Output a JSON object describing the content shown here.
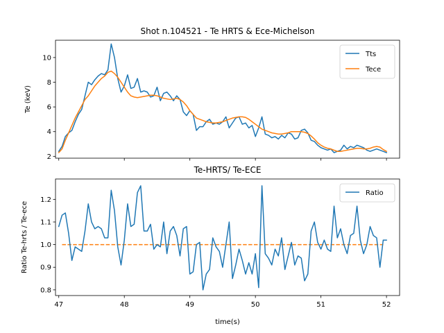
{
  "chart_data": [
    {
      "type": "line",
      "title": "Shot n.104521 - Te HRTS & Ece-Michelson",
      "xlabel": "",
      "ylabel": "Te (keV)",
      "xlim": [
        46.95,
        52.2
      ],
      "ylim": [
        1.85,
        11.4
      ],
      "xticks": [
        47,
        48,
        49,
        50,
        51,
        52
      ],
      "yticks": [
        2,
        4,
        6,
        8,
        10
      ],
      "legend": "top-right",
      "series": [
        {
          "name": "Tts",
          "color": "#1f77b4",
          "x": [
            47.0,
            47.05,
            47.1,
            47.15,
            47.2,
            47.25,
            47.3,
            47.35,
            47.4,
            47.45,
            47.5,
            47.55,
            47.6,
            47.65,
            47.7,
            47.75,
            47.8,
            47.85,
            47.9,
            47.95,
            48.0,
            48.05,
            48.1,
            48.15,
            48.2,
            48.25,
            48.3,
            48.35,
            48.4,
            48.45,
            48.5,
            48.55,
            48.6,
            48.65,
            48.7,
            48.75,
            48.8,
            48.85,
            48.9,
            48.95,
            49.0,
            49.05,
            49.1,
            49.15,
            49.2,
            49.25,
            49.3,
            49.35,
            49.4,
            49.45,
            49.5,
            49.55,
            49.6,
            49.65,
            49.7,
            49.75,
            49.8,
            49.85,
            49.9,
            49.95,
            50.0,
            50.05,
            50.1,
            50.15,
            50.2,
            50.25,
            50.3,
            50.35,
            50.4,
            50.45,
            50.5,
            50.55,
            50.6,
            50.65,
            50.7,
            50.75,
            50.8,
            50.85,
            50.9,
            50.95,
            51.0,
            51.05,
            51.1,
            51.15,
            51.2,
            51.25,
            51.3,
            51.35,
            51.4,
            51.45,
            51.5,
            51.55,
            51.6,
            51.65,
            51.7,
            51.75,
            51.8,
            51.85,
            51.9,
            51.95,
            52.0
          ],
          "values": [
            2.4,
            2.8,
            3.6,
            3.9,
            4.1,
            4.8,
            5.4,
            5.8,
            6.9,
            8.0,
            7.8,
            8.2,
            8.5,
            8.7,
            8.6,
            9.0,
            11.1,
            10.0,
            8.3,
            7.2,
            7.7,
            8.6,
            7.5,
            7.6,
            8.3,
            7.2,
            7.3,
            7.2,
            6.8,
            6.9,
            7.6,
            6.5,
            7.1,
            7.2,
            6.9,
            6.5,
            6.9,
            6.6,
            5.6,
            5.3,
            5.7,
            5.4,
            4.1,
            4.4,
            4.4,
            4.8,
            5.0,
            4.6,
            4.7,
            4.6,
            4.8,
            5.2,
            4.3,
            4.7,
            5.1,
            5.2,
            4.6,
            4.7,
            4.3,
            4.5,
            3.6,
            4.3,
            5.2,
            3.8,
            3.7,
            3.5,
            3.6,
            3.4,
            3.7,
            3.5,
            3.9,
            3.8,
            3.4,
            3.5,
            4.1,
            4.2,
            3.9,
            3.3,
            3.2,
            2.9,
            2.7,
            2.6,
            2.5,
            2.6,
            2.3,
            2.4,
            2.5,
            2.9,
            2.6,
            2.8,
            2.7,
            2.9,
            2.8,
            2.7,
            2.5,
            2.4,
            2.5,
            2.6,
            2.5,
            2.4,
            2.3
          ]
        },
        {
          "name": "Tece",
          "color": "#ff7f0e",
          "x": [
            47.0,
            47.05,
            47.1,
            47.15,
            47.2,
            47.25,
            47.3,
            47.35,
            47.4,
            47.45,
            47.5,
            47.55,
            47.6,
            47.65,
            47.7,
            47.75,
            47.8,
            47.85,
            47.9,
            47.95,
            48.0,
            48.05,
            48.1,
            48.15,
            48.2,
            48.25,
            48.3,
            48.35,
            48.4,
            48.45,
            48.5,
            48.55,
            48.6,
            48.65,
            48.7,
            48.75,
            48.8,
            48.85,
            48.9,
            48.95,
            49.0,
            49.05,
            49.1,
            49.15,
            49.2,
            49.25,
            49.3,
            49.35,
            49.4,
            49.45,
            49.5,
            49.55,
            49.6,
            49.65,
            49.7,
            49.75,
            49.8,
            49.85,
            49.9,
            49.95,
            50.0,
            50.05,
            50.1,
            50.15,
            50.2,
            50.25,
            50.3,
            50.35,
            50.4,
            50.45,
            50.5,
            50.55,
            50.6,
            50.65,
            50.7,
            50.75,
            50.8,
            50.85,
            50.9,
            50.95,
            51.0,
            51.05,
            51.1,
            51.15,
            51.2,
            51.25,
            51.3,
            51.35,
            51.4,
            51.45,
            51.5,
            51.55,
            51.6,
            51.65,
            51.7,
            51.75,
            51.8,
            51.85,
            51.9,
            51.95,
            52.0
          ],
          "values": [
            2.3,
            2.6,
            3.3,
            3.9,
            4.5,
            5.1,
            5.6,
            6.1,
            6.6,
            6.9,
            7.3,
            7.7,
            8.0,
            8.3,
            8.5,
            8.8,
            8.9,
            8.7,
            8.4,
            8.0,
            7.6,
            7.2,
            6.9,
            6.8,
            6.75,
            6.8,
            6.85,
            6.9,
            6.95,
            6.95,
            6.9,
            6.8,
            6.7,
            6.65,
            6.6,
            6.65,
            6.7,
            6.6,
            6.4,
            6.1,
            5.7,
            5.4,
            5.1,
            5.0,
            4.9,
            4.8,
            4.75,
            4.7,
            4.7,
            4.75,
            4.8,
            4.9,
            5.0,
            5.1,
            5.15,
            5.2,
            5.2,
            5.15,
            5.0,
            4.8,
            4.6,
            4.4,
            4.2,
            4.1,
            4.0,
            3.9,
            3.85,
            3.8,
            3.8,
            3.85,
            3.9,
            4.0,
            4.0,
            4.0,
            4.0,
            3.95,
            3.85,
            3.65,
            3.4,
            3.1,
            2.9,
            2.75,
            2.65,
            2.6,
            2.5,
            2.4,
            2.4,
            2.45,
            2.5,
            2.55,
            2.6,
            2.65,
            2.65,
            2.6,
            2.6,
            2.65,
            2.75,
            2.8,
            2.75,
            2.55,
            2.4
          ]
        }
      ]
    },
    {
      "type": "line",
      "title": "Te-HRTS/ Te-ECE",
      "xlabel": "time(s)",
      "ylabel": "Ratio Te-hrts / Te-ece",
      "xlim": [
        46.95,
        52.2
      ],
      "ylim": [
        0.775,
        1.29
      ],
      "xticks": [
        47,
        48,
        49,
        50,
        51,
        52
      ],
      "yticks": [
        0.8,
        0.9,
        1.0,
        1.1,
        1.2
      ],
      "legend": "top-right",
      "reference_line": {
        "y": 1.0,
        "color": "#ff7f0e",
        "style": "dashed",
        "x": [
          47.05,
          51.95
        ]
      },
      "series": [
        {
          "name": "Ratio",
          "color": "#1f77b4",
          "x": [
            47.0,
            47.05,
            47.1,
            47.15,
            47.2,
            47.25,
            47.3,
            47.35,
            47.4,
            47.45,
            47.5,
            47.55,
            47.6,
            47.65,
            47.7,
            47.75,
            47.8,
            47.85,
            47.9,
            47.95,
            48.0,
            48.05,
            48.1,
            48.15,
            48.2,
            48.25,
            48.3,
            48.35,
            48.4,
            48.45,
            48.5,
            48.55,
            48.6,
            48.65,
            48.7,
            48.75,
            48.8,
            48.85,
            48.9,
            48.95,
            49.0,
            49.05,
            49.1,
            49.15,
            49.2,
            49.25,
            49.3,
            49.35,
            49.4,
            49.45,
            49.5,
            49.55,
            49.6,
            49.65,
            49.7,
            49.75,
            49.8,
            49.85,
            49.9,
            49.95,
            50.0,
            50.05,
            50.1,
            50.15,
            50.2,
            50.25,
            50.3,
            50.35,
            50.4,
            50.45,
            50.5,
            50.55,
            50.6,
            50.65,
            50.7,
            50.75,
            50.8,
            50.85,
            50.9,
            50.95,
            51.0,
            51.05,
            51.1,
            51.15,
            51.2,
            51.25,
            51.3,
            51.35,
            51.4,
            51.45,
            51.5,
            51.55,
            51.6,
            51.65,
            51.7,
            51.75,
            51.8,
            51.85,
            51.9,
            51.95,
            52.0
          ],
          "values": [
            1.08,
            1.13,
            1.14,
            1.05,
            0.93,
            0.99,
            0.98,
            0.97,
            1.06,
            1.18,
            1.1,
            1.07,
            1.08,
            1.07,
            1.03,
            1.03,
            1.24,
            1.15,
            0.99,
            0.91,
            1.02,
            1.18,
            1.08,
            1.09,
            1.23,
            1.26,
            1.06,
            1.06,
            1.09,
            0.98,
            1.0,
            0.99,
            1.1,
            0.96,
            1.06,
            1.08,
            1.04,
            0.95,
            1.07,
            1.08,
            0.87,
            0.88,
            1.0,
            1.01,
            0.8,
            0.87,
            0.89,
            1.03,
            0.99,
            0.97,
            0.9,
            1.0,
            1.1,
            0.85,
            0.91,
            0.98,
            0.93,
            0.87,
            0.92,
            0.87,
            0.96,
            0.81,
            1.26,
            0.96,
            0.94,
            0.91,
            0.98,
            0.95,
            1.03,
            0.89,
            0.95,
            1.01,
            0.91,
            0.95,
            0.94,
            0.84,
            0.87,
            1.06,
            1.1,
            1.01,
            0.98,
            1.02,
            0.98,
            0.97,
            1.17,
            1.03,
            1.07,
            1.0,
            0.96,
            1.04,
            1.05,
            1.17,
            1.02,
            0.96,
            1.0,
            1.08,
            1.04,
            1.03,
            0.9,
            1.02,
            1.02
          ]
        }
      ]
    }
  ]
}
